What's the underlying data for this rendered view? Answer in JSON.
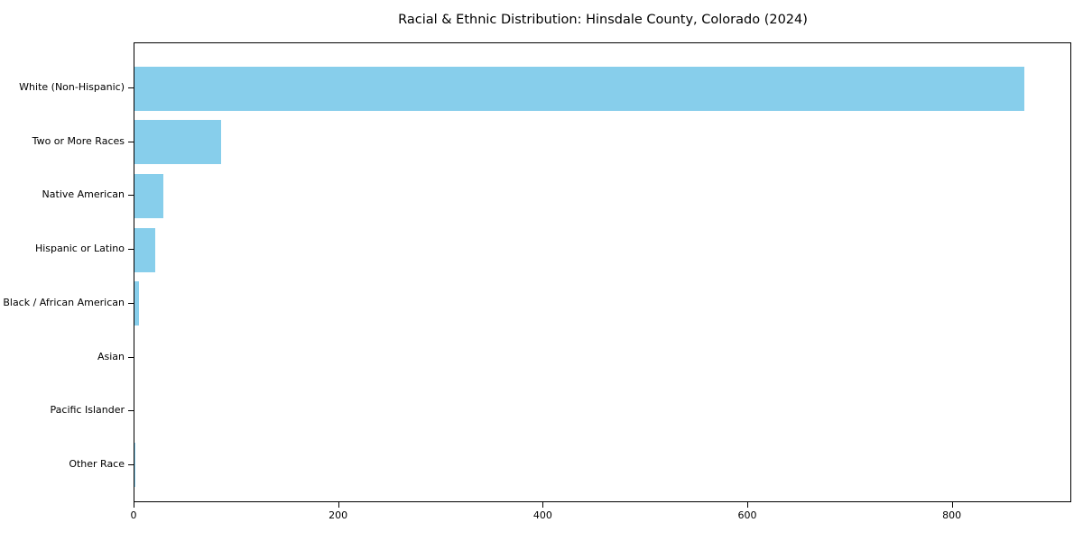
{
  "chart_data": {
    "type": "bar",
    "orientation": "horizontal",
    "title": "Racial & Ethnic Distribution: Hinsdale County, Colorado (2024)",
    "categories": [
      "White (Non-Hispanic)",
      "Two or More Races",
      "Native American",
      "Hispanic or Latino",
      "Black / African American",
      "Asian",
      "Pacific Islander",
      "Other Race"
    ],
    "values": [
      870,
      85,
      28,
      20,
      4,
      0,
      0,
      1
    ],
    "xlabel": "",
    "ylabel": "",
    "xticks": [
      0,
      200,
      400,
      600,
      800
    ],
    "xlim": [
      0,
      915
    ],
    "bar_color": "#87CEEB",
    "grid": false,
    "legend": null
  }
}
